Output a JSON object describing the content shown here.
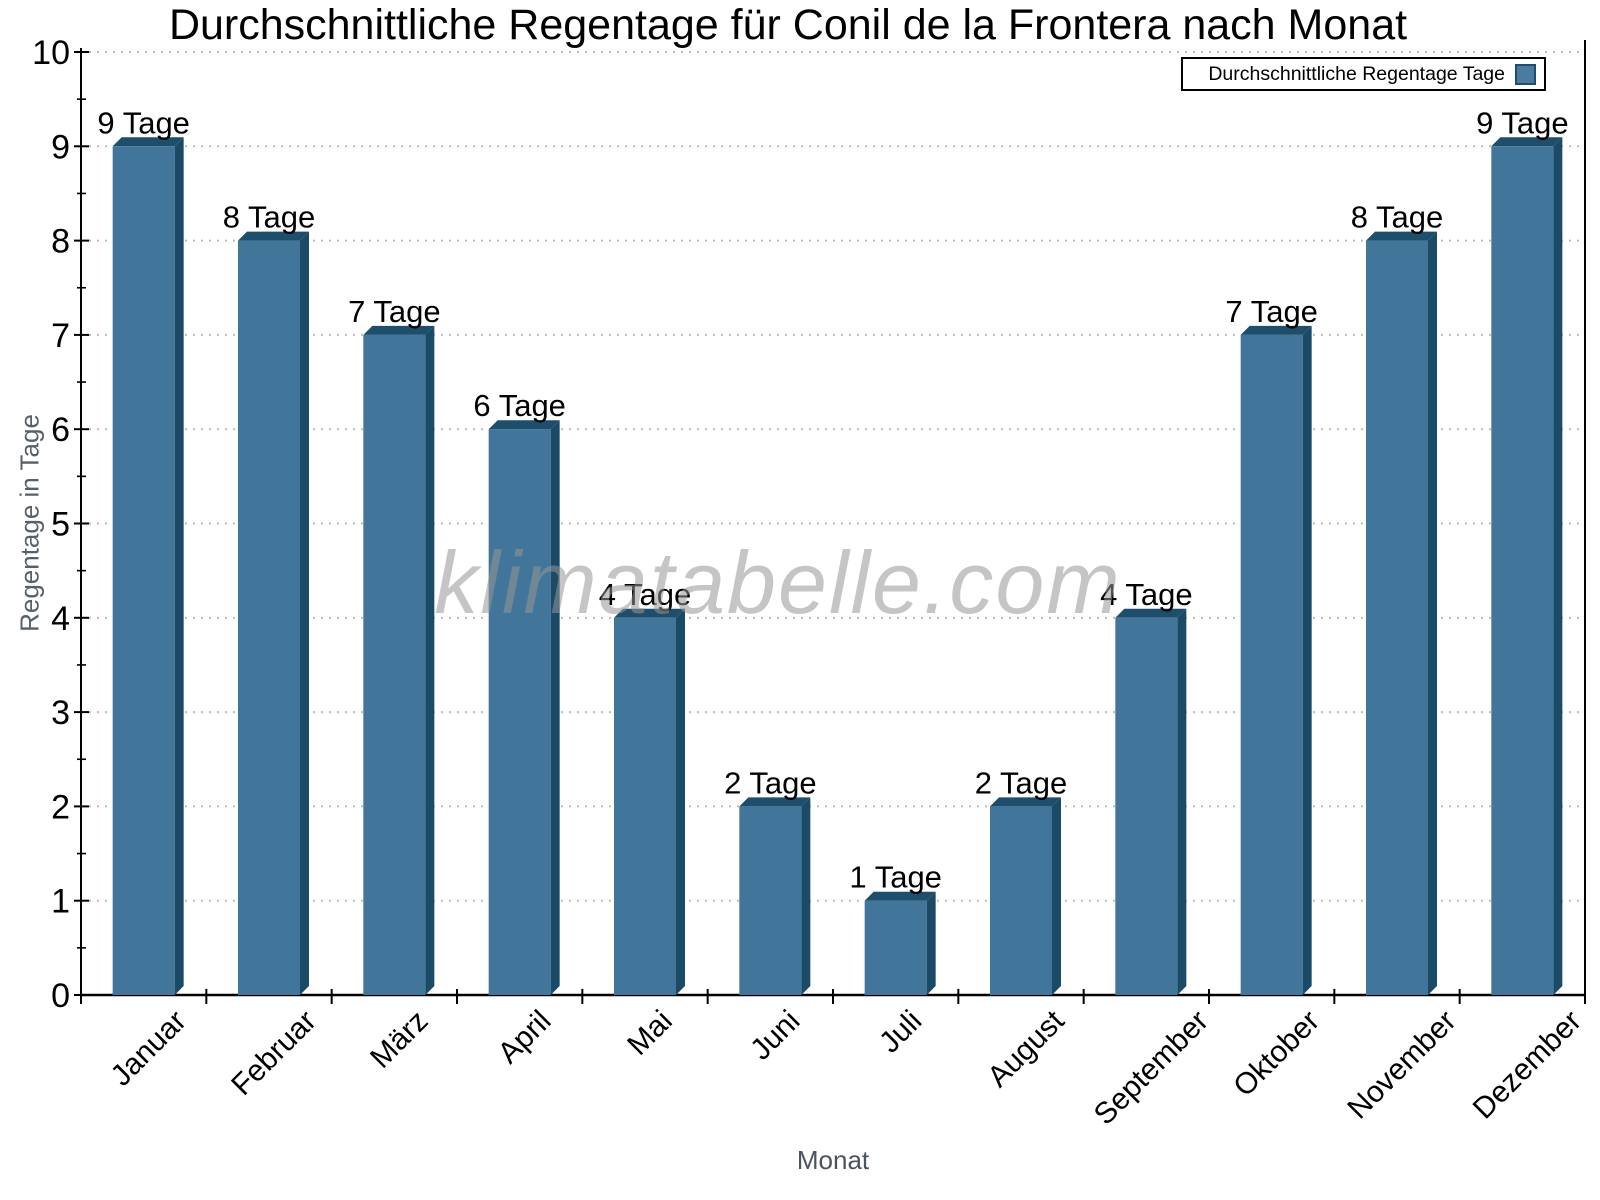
{
  "watermark": "klimatabelle.com",
  "legend": {
    "label": "Durchschnittliche Regentage Tage"
  },
  "chart_data": {
    "type": "bar",
    "title": "Durchschnittliche Regentage für Conil de la Frontera nach Monat",
    "categories": [
      "Januar",
      "Februar",
      "März",
      "April",
      "Mai",
      "Juni",
      "Juli",
      "August",
      "September",
      "Oktober",
      "November",
      "Dezember"
    ],
    "series": [
      {
        "name": "Durchschnittliche Regentage Tage",
        "values": [
          9,
          8,
          7,
          6,
          4,
          2,
          1,
          2,
          4,
          7,
          8,
          9
        ]
      }
    ],
    "value_label_unit": "Tage",
    "value_labels": [
      "9 Tage",
      "8 Tage",
      "7 Tage",
      "6 Tage",
      "4 Tage",
      "2 Tage",
      "1 Tage",
      "2 Tage",
      "4 Tage",
      "7 Tage",
      "8 Tage",
      "9 Tage"
    ],
    "xlabel": "Monat",
    "ylabel": "Regentage in Tage",
    "ylim": [
      0,
      10
    ],
    "yticks": [
      0,
      1,
      2,
      3,
      4,
      5,
      6,
      7,
      8,
      9,
      10
    ],
    "grid": "horizontal-dotted",
    "legend_position": "top-right",
    "colors": {
      "bar_front": "#42759a",
      "bar_top": "#1d4e6b",
      "bar_side": "#1a4a66",
      "grid": "#bcbcbc",
      "axis": "#000000",
      "tick_label": "#000000",
      "value_label": "#000000",
      "axis_title": "#566069",
      "watermark": "#bdbdbd"
    }
  }
}
